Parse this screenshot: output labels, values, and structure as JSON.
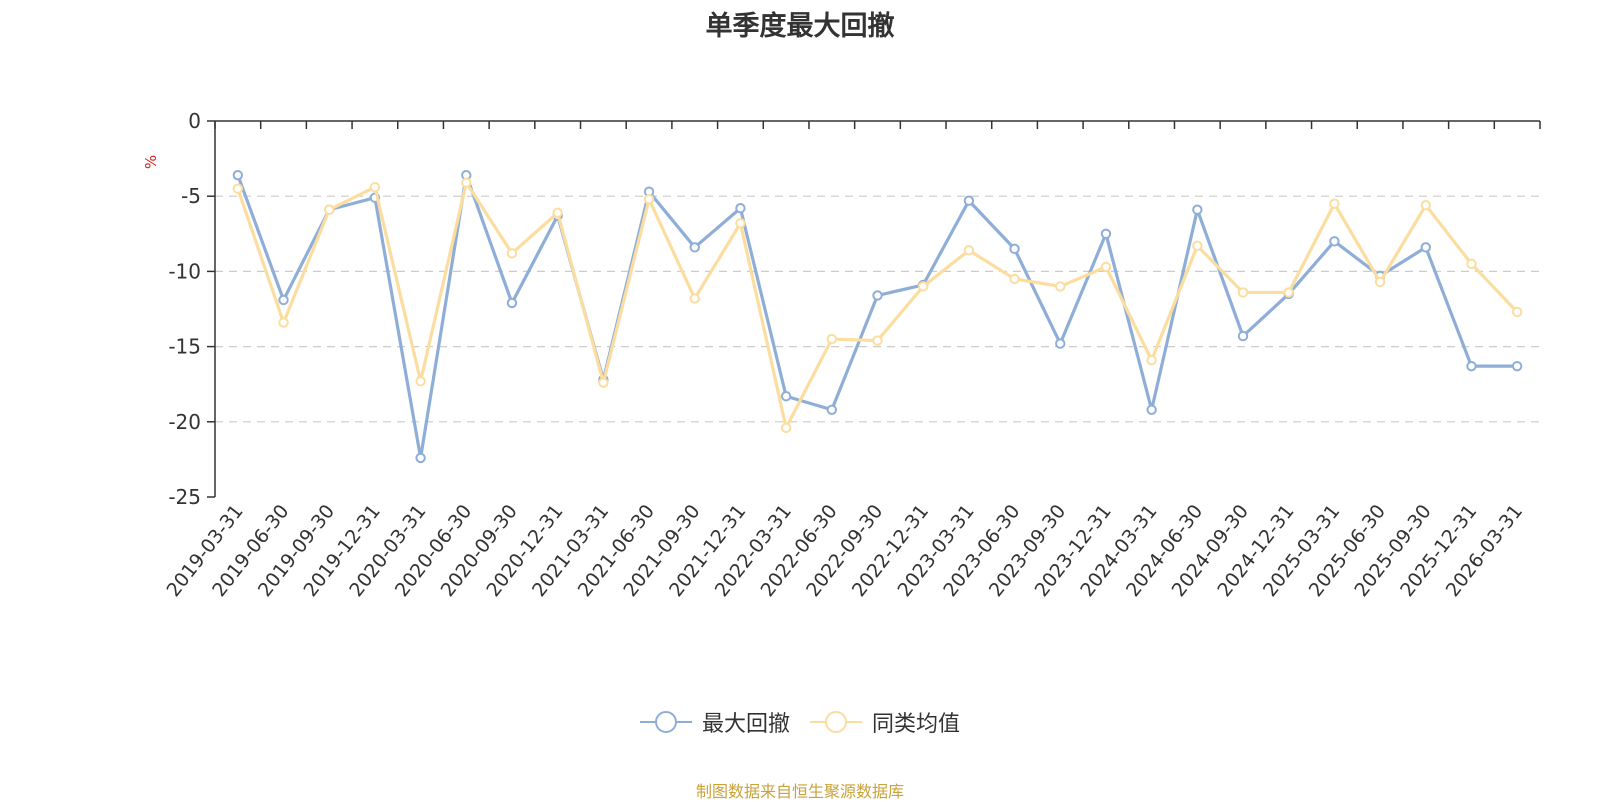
{
  "chart_data": {
    "type": "line",
    "title": "单季度最大回撤",
    "ylabel": "%",
    "xlabel": "",
    "ylim": [
      -25,
      0
    ],
    "yticks": [
      0,
      -5,
      -10,
      -15,
      -20,
      -25
    ],
    "grid": true,
    "legend_position": "bottom-center",
    "categories": [
      "2019-03-31",
      "2019-06-30",
      "2019-09-30",
      "2019-12-31",
      "2020-03-31",
      "2020-06-30",
      "2020-09-30",
      "2020-12-31",
      "2021-03-31",
      "2021-06-30",
      "2021-09-30",
      "2021-12-31",
      "2022-03-31",
      "2022-06-30",
      "2022-09-30",
      "2022-12-31",
      "2023-03-31",
      "2023-06-30",
      "2023-09-30",
      "2023-12-31",
      "2024-03-31",
      "2024-06-30",
      "2024-09-30",
      "2024-12-31",
      "2025-03-31",
      "2025-06-30",
      "2025-09-30",
      "2025-12-31",
      "2026-03-31"
    ],
    "series": [
      {
        "name": "最大回撤",
        "color": "#8eaed8",
        "values": [
          -3.6,
          -11.9,
          -5.9,
          -5.1,
          -22.4,
          -3.6,
          -12.1,
          -6.3,
          -17.2,
          -4.7,
          -8.4,
          -5.8,
          -18.3,
          -19.2,
          -11.6,
          -10.9,
          -5.3,
          -8.5,
          -14.8,
          -7.5,
          -19.2,
          -5.9,
          -14.3,
          -11.5,
          -8.0,
          -10.3,
          -8.4,
          -16.3,
          -16.3
        ]
      },
      {
        "name": "同类均值",
        "color": "#fbdda0",
        "values": [
          -4.5,
          -13.4,
          -5.9,
          -4.4,
          -17.3,
          -4.1,
          -8.8,
          -6.1,
          -17.4,
          -5.2,
          -11.8,
          -6.8,
          -20.4,
          -14.5,
          -14.6,
          -11.0,
          -8.6,
          -10.5,
          -11.0,
          -9.7,
          -15.9,
          -8.3,
          -11.4,
          -11.4,
          -5.5,
          -10.7,
          -5.6,
          -9.5,
          -12.7
        ]
      }
    ]
  },
  "footer": {
    "source": "制图数据来自恒生聚源数据库"
  }
}
